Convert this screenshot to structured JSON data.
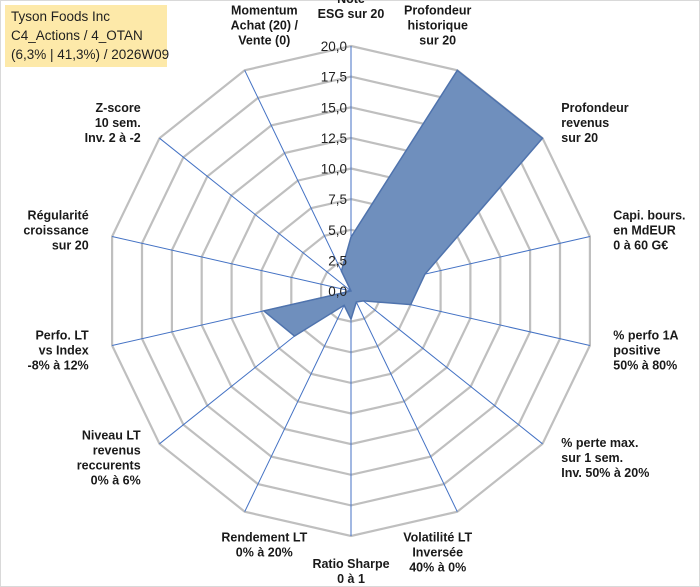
{
  "title_box": {
    "line1": "Tyson Foods Inc",
    "line2": "C4_Actions / 4_OTAN",
    "line3": "(6,3% | 41,3%) / 2026W09"
  },
  "colors": {
    "fill": "#6f8fbd",
    "stroke": "#4f73ad",
    "spoke": "#4472c4",
    "grid": "#bfbfbf",
    "title_bg": "#fde9a9"
  },
  "chart_data": {
    "type": "radar",
    "rmin": 0,
    "rmax": 20,
    "ticks": [
      "0,0",
      "2,5",
      "5,0",
      "7,5",
      "10,0",
      "12,5",
      "15,0",
      "17,5",
      "20,0"
    ],
    "axes": [
      {
        "label": [
          "Note",
          "ESG sur 20"
        ],
        "value": 4.4
      },
      {
        "label": [
          "Profondeur",
          "historique",
          "sur 20"
        ],
        "value": 20
      },
      {
        "label": [
          "Profondeur",
          "revenus",
          "sur 20"
        ],
        "value": 20
      },
      {
        "label": [
          "Capi. bours.",
          "en MdEUR",
          "0 à 60 G€"
        ],
        "value": 6.2
      },
      {
        "label": [
          "% perfo 1A",
          "positive",
          "50% à 80%"
        ],
        "value": 5.0
      },
      {
        "label": [
          "% perte max.",
          "sur 1 sem.",
          "Inv. 50% à 20%"
        ],
        "value": 1.3
      },
      {
        "label": [
          "Volatilité LT",
          "Inversée",
          "40% à 0%"
        ],
        "value": 1.0
      },
      {
        "label": [
          "Ratio Sharpe",
          "0 à 1"
        ],
        "value": 2.3
      },
      {
        "label": [
          "Rendement LT",
          "0% à 20%"
        ],
        "value": 1.3
      },
      {
        "label": [
          "Niveau LT",
          "revenus",
          "reccurents",
          "0% à 6%"
        ],
        "value": 5.9
      },
      {
        "label": [
          "Perfo. LT",
          "vs Index",
          "-8% à 12%"
        ],
        "value": 7.3
      },
      {
        "label": [
          "Régularité",
          "croissance",
          "sur 20"
        ],
        "value": 0.0
      },
      {
        "label": [
          "Z-score",
          "10 sem.",
          "Inv. 2 à -2"
        ],
        "value": 0.0
      },
      {
        "label": [
          "Momentum",
          "Achat (20) /",
          "Vente (0)"
        ],
        "value": 1.8
      }
    ]
  }
}
